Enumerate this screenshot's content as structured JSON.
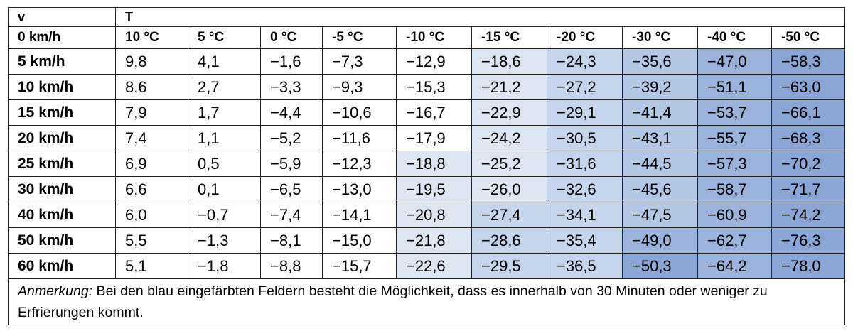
{
  "table": {
    "corner_label": "v",
    "group_label": "T",
    "header_row_label": "0 km/h",
    "columns": [
      "10 °C",
      "5 °C",
      "0 °C",
      "-5 °C",
      "-10 °C",
      "-15 °C",
      "-20 °C",
      "-30 °C",
      "-40 °C",
      "-50 °C"
    ],
    "rows": [
      {
        "label": "5 km/h",
        "values": [
          "9,8",
          "4,1",
          "−1,6",
          "−7,3",
          "−12,9",
          "−18,6",
          "−24,3",
          "−35,6",
          "−47,0",
          "−58,3"
        ],
        "shade": [
          0,
          0,
          0,
          0,
          0,
          1,
          2,
          3,
          4,
          5
        ]
      },
      {
        "label": "10 km/h",
        "values": [
          "8,6",
          "2,7",
          "−3,3",
          "−9,3",
          "−15,3",
          "−21,2",
          "−27,2",
          "−39,2",
          "−51,1",
          "−63,0"
        ],
        "shade": [
          0,
          0,
          0,
          0,
          0,
          1,
          2,
          3,
          4,
          5
        ]
      },
      {
        "label": "15 km/h",
        "values": [
          "7,9",
          "1,7",
          "−4,4",
          "−10,6",
          "−16,7",
          "−22,9",
          "−29,1",
          "−41,4",
          "−53,7",
          "−66,1"
        ],
        "shade": [
          0,
          0,
          0,
          0,
          0,
          1,
          2,
          3,
          4,
          5
        ]
      },
      {
        "label": "20 km/h",
        "values": [
          "7,4",
          "1,1",
          "−5,2",
          "−11,6",
          "−17,9",
          "−24,2",
          "−30,5",
          "−43,1",
          "−55,7",
          "−68,3"
        ],
        "shade": [
          0,
          0,
          0,
          0,
          0,
          1,
          2,
          3,
          4,
          5
        ]
      },
      {
        "label": "25 km/h",
        "values": [
          "6,9",
          "0,5",
          "−5,9",
          "−12,3",
          "−18,8",
          "−25,2",
          "−31,6",
          "−44,5",
          "−57,3",
          "−70,2"
        ],
        "shade": [
          0,
          0,
          0,
          0,
          1,
          1,
          2,
          3,
          4,
          5
        ]
      },
      {
        "label": "30 km/h",
        "values": [
          "6,6",
          "0,1",
          "−6,5",
          "−13,0",
          "−19,5",
          "−26,0",
          "−32,6",
          "−45,6",
          "−58,7",
          "−71,7"
        ],
        "shade": [
          0,
          0,
          0,
          0,
          1,
          1,
          2,
          3,
          4,
          5
        ]
      },
      {
        "label": "40 km/h",
        "values": [
          "6,0",
          "−0,7",
          "−7,4",
          "−14,1",
          "−20,8",
          "−27,4",
          "−34,1",
          "−47,5",
          "−60,9",
          "−74,2"
        ],
        "shade": [
          0,
          0,
          0,
          0,
          1,
          2,
          2,
          3,
          4,
          5
        ]
      },
      {
        "label": "50 km/h",
        "values": [
          "5,5",
          "−1,3",
          "−8,1",
          "−15,0",
          "−21,8",
          "−28,6",
          "−35,4",
          "−49,0",
          "−62,7",
          "−76,3"
        ],
        "shade": [
          0,
          0,
          0,
          0,
          1,
          2,
          2,
          4,
          4,
          5
        ]
      },
      {
        "label": "60 km/h",
        "values": [
          "5,1",
          "−1,8",
          "−8,8",
          "−15,7",
          "−22,6",
          "−29,5",
          "−36,5",
          "−50,3",
          "−64,2",
          "−78,0"
        ],
        "shade": [
          0,
          0,
          0,
          0,
          1,
          2,
          2,
          5,
          4,
          5
        ]
      }
    ],
    "note_label": "Anmerkung:",
    "note_text": " Bei den blau eingefärbten Feldern besteht die Möglichkeit, dass es innerhalb von 30 Minuten oder weniger zu Erfrierungen kommt."
  },
  "colors": {
    "shade_1": "#dce6f2",
    "shade_2": "#c5d5ec",
    "shade_3": "#b4c7e5",
    "shade_4": "#9bb3da",
    "shade_5": "#8aa6d4",
    "border": "#222222"
  }
}
